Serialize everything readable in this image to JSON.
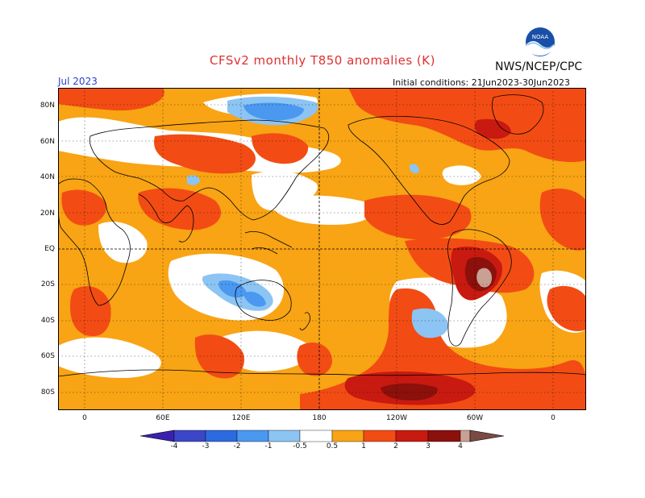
{
  "title": "CFSv2 monthly T850 anomalies (K)",
  "agency": "NWS/NCEP/CPC",
  "logo_text": "NOAA",
  "valid_month": "Jul 2023",
  "initial_conditions": "Initial conditions: 21Jun2023-30Jun2023",
  "latitude_labels": [
    "80N",
    "60N",
    "40N",
    "20N",
    "EQ",
    "20S",
    "40S",
    "60S",
    "80S"
  ],
  "longitude_labels": [
    "0",
    "60E",
    "120E",
    "180",
    "120W",
    "60W",
    "0"
  ],
  "colorbar": {
    "tick_labels": [
      "-4",
      "-3",
      "-2",
      "-1",
      "-0.5",
      "0.5",
      "1",
      "2",
      "3",
      "4"
    ],
    "colors": {
      "below_-4": "#3a20b0",
      "-4_to_-3": "#3c46c8",
      "-3_to_-2": "#2d6ae0",
      "-2_to_-1": "#4a98f0",
      "-1_to_-0.5": "#8cc4f4",
      "-0.5_to_0.5": "#ffffff",
      "0.5_to_1": "#f8a414",
      "1_to_2": "#f24c14",
      "2_to_3": "#c81a10",
      "3_to_4": "#8c100c",
      "4_to_above_ramp": "#c8a094",
      "above_4": "#7a4a44"
    }
  },
  "map": {
    "projection": "cylindrical equidistant",
    "features": [
      "coastlines",
      "dotted graticule",
      "dashed equator",
      "dashed dateline"
    ]
  }
}
